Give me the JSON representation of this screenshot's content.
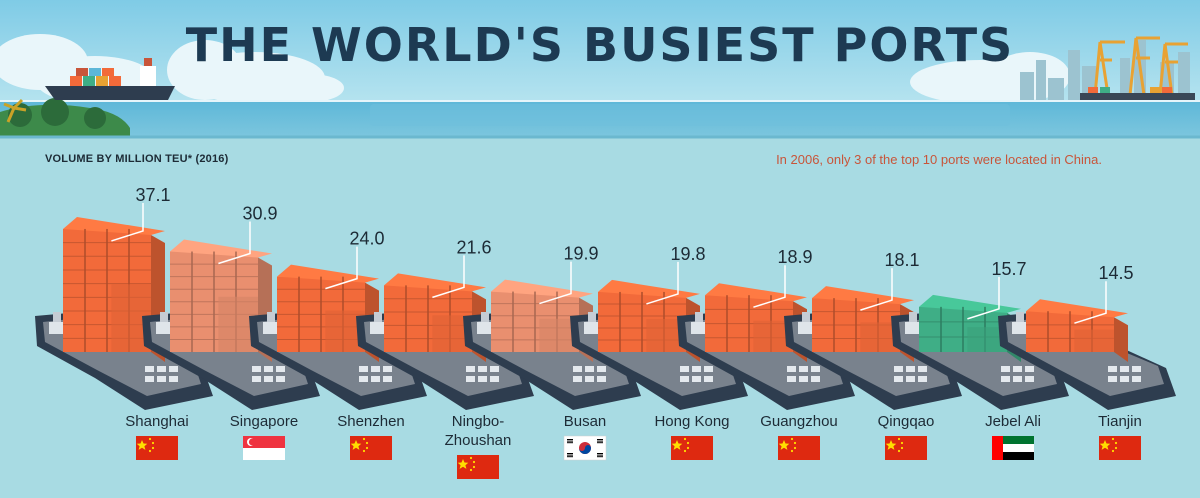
{
  "title": "THE WORLD'S BUSIEST PORTS",
  "ylabel": "VOLUME BY MILLION TEU* (2016)",
  "note": "In 2006, only 3 of the top 10 ports were located in China.",
  "colors": {
    "sky": "#8ed2e6",
    "sea": "#5cb6d6",
    "background": "#a8dbe3",
    "container_orange": "#f26a3a",
    "container_salmon": "#e98f6f",
    "container_green": "#3fae86",
    "hull": "#2e3d4f",
    "deck": "#79828d"
  },
  "chart_data": {
    "type": "bar",
    "title": "THE WORLD'S BUSIEST PORTS",
    "ylabel": "VOLUME BY MILLION TEU* (2016)",
    "categories": [
      "Shanghai",
      "Singapore",
      "Shenzhen",
      "Ningbo-Zhoushan",
      "Busan",
      "Hong Kong",
      "Guangzhou",
      "Qingqao",
      "Jebel Ali",
      "Tianjin"
    ],
    "label_lines": [
      [
        "Shanghai"
      ],
      [
        "Singapore"
      ],
      [
        "Shenzhen"
      ],
      [
        "Ningbo-",
        "Zhoushan"
      ],
      [
        "Busan"
      ],
      [
        "Hong Kong"
      ],
      [
        "Guangzhou"
      ],
      [
        "Qingqao"
      ],
      [
        "Jebel Ali"
      ],
      [
        "Tianjin"
      ]
    ],
    "values": [
      37.1,
      30.9,
      24.0,
      21.6,
      19.9,
      19.8,
      18.9,
      18.1,
      15.7,
      14.5
    ],
    "value_labels": [
      "37.1",
      "30.9",
      "24.0",
      "21.6",
      "19.9",
      "19.8",
      "18.9",
      "18.1",
      "15.7",
      "14.5"
    ],
    "countries": [
      "china",
      "singapore",
      "china",
      "china",
      "south-korea",
      "china",
      "china",
      "china",
      "uae",
      "china"
    ],
    "container_colors": [
      "#f26a3a",
      "#e98f6f",
      "#f26a3a",
      "#f26a3a",
      "#e98f6f",
      "#f26a3a",
      "#f26a3a",
      "#f26a3a",
      "#3fae86",
      "#f26a3a"
    ],
    "ylim": [
      0,
      40
    ]
  }
}
